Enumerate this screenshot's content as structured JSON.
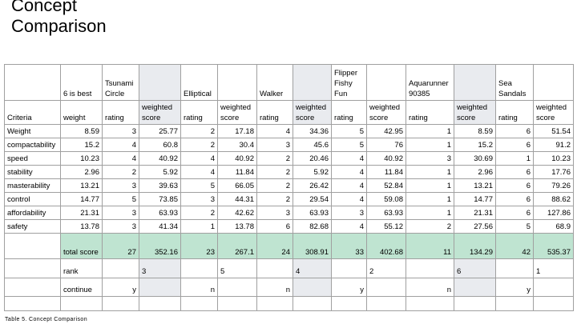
{
  "title": "Concept Comparison",
  "caption": "Table 5. Concept Comparison",
  "table": {
    "scale_note": "6 is best",
    "criteria_label": "Criteria",
    "weight_label": "weight",
    "rating_label": "rating",
    "score_label": "weighted score",
    "concepts": [
      "Tsunami Circle",
      "Elliptical",
      "Walker",
      "Flipper Fishy Fun",
      "Aquarunner 90385",
      "Sea Sandals"
    ],
    "rows": [
      {
        "criteria": "Weight",
        "weight": 8.59,
        "scores": [
          [
            3,
            25.77
          ],
          [
            2,
            17.18
          ],
          [
            4,
            34.36
          ],
          [
            5,
            42.95
          ],
          [
            1,
            8.59
          ],
          [
            6,
            51.54
          ]
        ]
      },
      {
        "criteria": "compactability",
        "weight": 15.2,
        "scores": [
          [
            4,
            60.8
          ],
          [
            2,
            30.4
          ],
          [
            3,
            45.6
          ],
          [
            5,
            76
          ],
          [
            1,
            15.2
          ],
          [
            6,
            91.2
          ]
        ]
      },
      {
        "criteria": "speed",
        "weight": 10.23,
        "scores": [
          [
            4,
            40.92
          ],
          [
            4,
            40.92
          ],
          [
            2,
            20.46
          ],
          [
            4,
            40.92
          ],
          [
            3,
            30.69
          ],
          [
            1,
            10.23
          ]
        ]
      },
      {
        "criteria": "stability",
        "weight": 2.96,
        "scores": [
          [
            2,
            5.92
          ],
          [
            4,
            11.84
          ],
          [
            2,
            5.92
          ],
          [
            4,
            11.84
          ],
          [
            1,
            2.96
          ],
          [
            6,
            17.76
          ]
        ]
      },
      {
        "criteria": "masterability",
        "weight": 13.21,
        "scores": [
          [
            3,
            39.63
          ],
          [
            5,
            66.05
          ],
          [
            2,
            26.42
          ],
          [
            4,
            52.84
          ],
          [
            1,
            13.21
          ],
          [
            6,
            79.26
          ]
        ]
      },
      {
        "criteria": "control",
        "weight": 14.77,
        "scores": [
          [
            5,
            73.85
          ],
          [
            3,
            44.31
          ],
          [
            2,
            29.54
          ],
          [
            4,
            59.08
          ],
          [
            1,
            14.77
          ],
          [
            6,
            88.62
          ]
        ]
      },
      {
        "criteria": "affordability",
        "weight": 21.31,
        "scores": [
          [
            3,
            63.93
          ],
          [
            2,
            42.62
          ],
          [
            3,
            63.93
          ],
          [
            3,
            63.93
          ],
          [
            1,
            21.31
          ],
          [
            6,
            127.86
          ]
        ]
      },
      {
        "criteria": "safety",
        "weight": 13.78,
        "scores": [
          [
            3,
            41.34
          ],
          [
            1,
            13.78
          ],
          [
            6,
            82.68
          ],
          [
            4,
            55.12
          ],
          [
            2,
            27.56
          ],
          [
            5,
            68.9
          ]
        ]
      }
    ],
    "total": {
      "label": "total score",
      "scores": [
        [
          27,
          352.16
        ],
        [
          23,
          267.1
        ],
        [
          24,
          308.91
        ],
        [
          33,
          402.68
        ],
        [
          11,
          134.29
        ],
        [
          42,
          535.37
        ]
      ]
    },
    "rank": {
      "label": "rank",
      "values": [
        3,
        5,
        4,
        2,
        6,
        1
      ]
    },
    "continue": {
      "label": "continue",
      "values": [
        "y",
        "n",
        "n",
        "y",
        "n",
        "y"
      ]
    }
  }
}
